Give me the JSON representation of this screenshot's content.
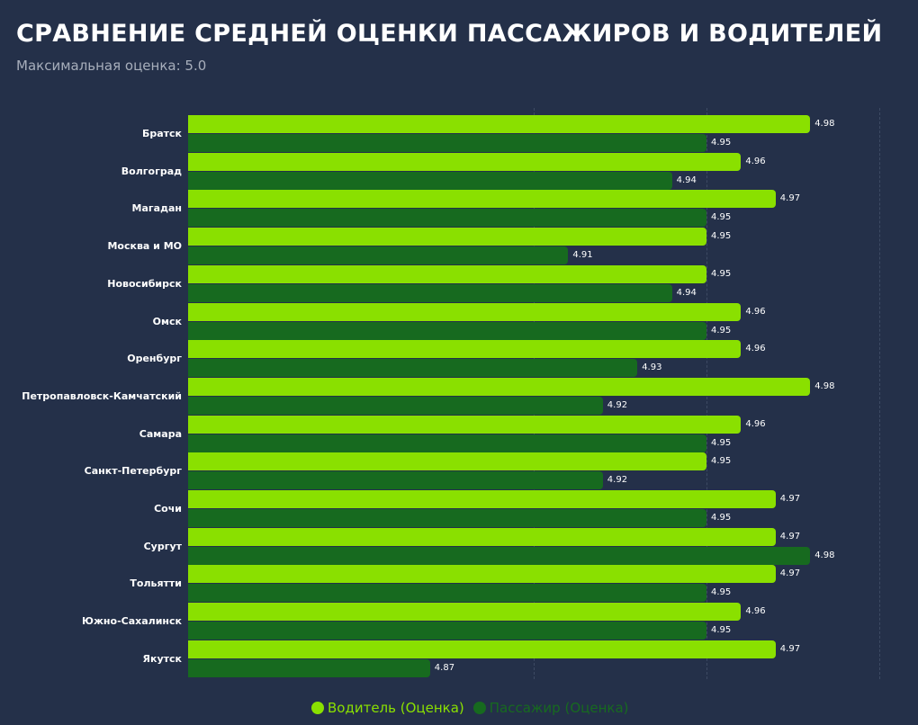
{
  "header": {
    "title": "СРАВНЕНИЕ СРЕДНЕЙ ОЦЕНКИ ПАССАЖИРОВ И ВОДИТЕЛЕЙ",
    "subtitle": "Максимальная оценка: 5.0"
  },
  "legend": {
    "items": [
      {
        "label": "Водитель (Оценка)",
        "color": "#8ae000"
      },
      {
        "label": "Пассажир (Оценка)",
        "color": "#176a1f"
      }
    ]
  },
  "colors": {
    "background": "#243049",
    "driver": "#8ae000",
    "passenger": "#176a1f",
    "gridline": "#3d4a63"
  },
  "chart_data": {
    "type": "bar",
    "orientation": "horizontal",
    "title": "СРАВНЕНИЕ СРЕДНЕЙ ОЦЕНКИ ПАССАЖИРОВ И ВОДИТЕЛЕЙ",
    "subtitle": "Максимальная оценка: 5.0",
    "xlabel": "",
    "ylabel": "",
    "xlim": [
      4.8,
      5.0
    ],
    "grid": {
      "x": true,
      "style": "dashed",
      "positions": [
        4.9,
        4.95,
        5.0
      ]
    },
    "legend_position": "bottom",
    "categories": [
      "Братск",
      "Волгоград",
      "Магадан",
      "Москва и МО",
      "Новосибирск",
      "Омск",
      "Оренбург",
      "Петропавловск-Камчатский",
      "Самара",
      "Санкт-Петербург",
      "Сочи",
      "Сургут",
      "Тольятти",
      "Южно-Сахалинск",
      "Якутск"
    ],
    "series": [
      {
        "name": "Водитель (Оценка)",
        "color": "#8ae000",
        "values": [
          4.98,
          4.96,
          4.97,
          4.95,
          4.95,
          4.96,
          4.96,
          4.98,
          4.96,
          4.95,
          4.97,
          4.97,
          4.97,
          4.96,
          4.97
        ]
      },
      {
        "name": "Пассажир (Оценка)",
        "color": "#176a1f",
        "values": [
          4.95,
          4.94,
          4.95,
          4.91,
          4.94,
          4.95,
          4.93,
          4.92,
          4.95,
          4.92,
          4.95,
          4.98,
          4.95,
          4.95,
          4.87
        ]
      }
    ],
    "data_labels": true
  }
}
